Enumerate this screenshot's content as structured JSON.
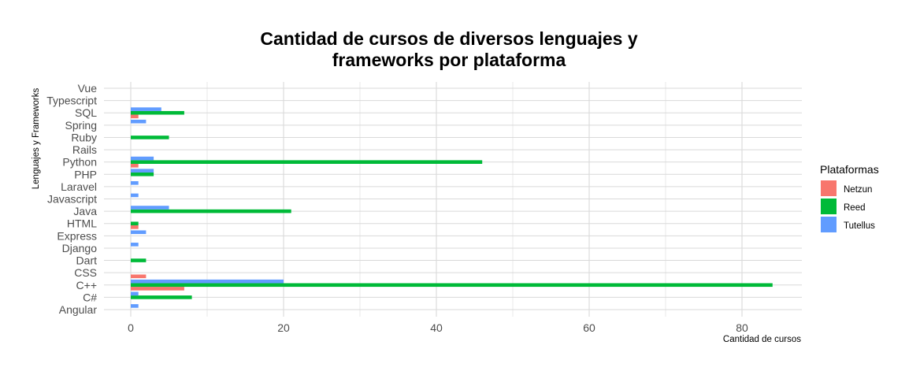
{
  "chart_data": {
    "type": "bar",
    "orientation": "horizontal",
    "title_lines": [
      "Cantidad de cursos de diversos lenguajes y",
      "frameworks por plataforma"
    ],
    "xlabel": "Cantidad de cursos",
    "ylabel": "Lenguajes y Frameworks",
    "xlim": [
      0,
      88
    ],
    "x_ticks": [
      "0",
      "20",
      "40",
      "60",
      "80"
    ],
    "grid": true,
    "legend_position": "right",
    "legend_title": "Plataformas",
    "categories": [
      "Angular",
      "C#",
      "C++",
      "CSS",
      "Dart",
      "Django",
      "Express",
      "HTML",
      "Java",
      "Javascript",
      "Laravel",
      "PHP",
      "Python",
      "Rails",
      "Ruby",
      "Spring",
      "SQL",
      "Typescript",
      "Vue"
    ],
    "series": [
      {
        "name": "Netzun",
        "color": "#F8766D",
        "values": [
          0,
          0,
          7,
          2,
          0,
          0,
          0,
          1,
          0,
          0,
          0,
          0,
          1,
          0,
          0,
          0,
          1,
          0,
          0
        ]
      },
      {
        "name": "Reed",
        "color": "#00BA38",
        "values": [
          0,
          8,
          84,
          0,
          2,
          0,
          0,
          1,
          21,
          0,
          0,
          3,
          46,
          0,
          5,
          0,
          7,
          0,
          0
        ]
      },
      {
        "name": "Tutellus",
        "color": "#619CFF",
        "values": [
          1,
          1,
          20,
          0,
          0,
          1,
          2,
          0,
          5,
          1,
          1,
          3,
          3,
          0,
          0,
          2,
          4,
          0,
          0
        ]
      }
    ]
  }
}
